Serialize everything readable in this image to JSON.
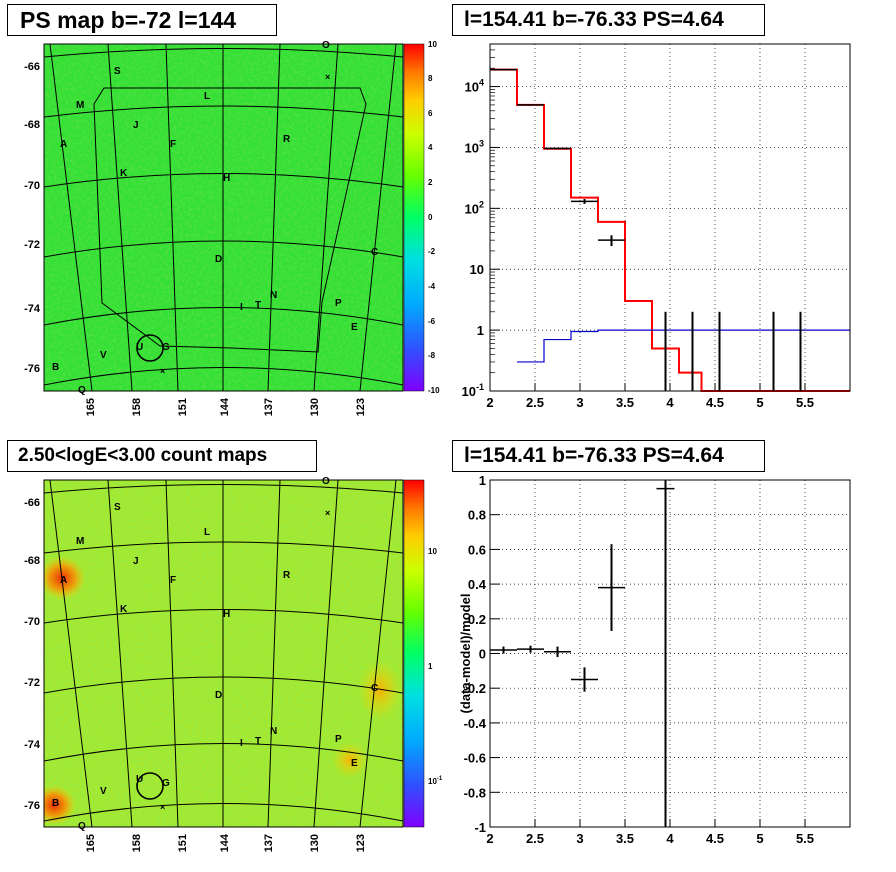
{
  "panels": {
    "ps_map_title": "PS map b=-72 l=144",
    "spectrum_title": "l=154.41 b=-76.33 PS=4.64",
    "count_map_title": "2.50<logE<3.00 count maps",
    "residual_title": "l=154.41 b=-76.33 PS=4.64"
  },
  "sky_maps": {
    "y_ticks": [
      "-66",
      "-68",
      "-70",
      "-72",
      "-74",
      "-76"
    ],
    "x_ticks": [
      "165",
      "158",
      "151",
      "144",
      "137",
      "130",
      "123"
    ],
    "source_labels": [
      "O",
      "S",
      "L",
      "M",
      "J",
      "A",
      "F",
      "R",
      "K",
      "H",
      "C",
      "D",
      "N",
      "I",
      "T",
      "P",
      "E",
      "U",
      "G",
      "V",
      "B",
      "Q"
    ],
    "ps_colorbar_ticks": [
      "10",
      "8",
      "6",
      "4",
      "2",
      "0",
      "-2",
      "-4",
      "-6",
      "-8",
      "-10"
    ],
    "count_colorbar_ticks": [
      "10",
      "1",
      "10^-1"
    ]
  },
  "chart_data": [
    {
      "type": "line",
      "title": "l=154.41 b=-76.33 PS=4.64",
      "xlabel": "",
      "ylabel": "",
      "xlim": [
        2,
        6
      ],
      "ylim": [
        0.1,
        50000
      ],
      "log_y": true,
      "grid": true,
      "x_ticks": [
        "2",
        "2.5",
        "3",
        "3.5",
        "4",
        "4.5",
        "5",
        "5.5"
      ],
      "y_ticks": [
        {
          "value": 10000,
          "base": "10",
          "exp": "4"
        },
        {
          "value": 1000,
          "base": "10",
          "exp": "3"
        },
        {
          "value": 100,
          "base": "10",
          "exp": "2"
        },
        {
          "value": 10,
          "base": "10",
          "exp": ""
        },
        {
          "value": 1,
          "base": "1",
          "exp": ""
        },
        {
          "value": 0.1,
          "base": "10",
          "exp": "-1"
        }
      ],
      "series": [
        {
          "kind": "step",
          "color": "#ff0000",
          "edges": [
            2,
            2.3,
            2.6,
            2.9,
            3.2,
            3.5,
            3.8,
            4.1,
            4.35,
            6
          ],
          "values": [
            19000,
            5000,
            950,
            150,
            60,
            3,
            0.5,
            0.2,
            0.1
          ]
        },
        {
          "kind": "step",
          "color": "#0000cc",
          "edges": [
            2.3,
            2.6,
            2.9,
            3.2,
            6
          ],
          "values": [
            0.3,
            0.7,
            0.95,
            1.0
          ]
        },
        {
          "kind": "points",
          "color": "#000000",
          "points": [
            {
              "x": 2.15,
              "y": 19000,
              "xerr": 0.15,
              "ylo": 18800,
              "yhi": 19200
            },
            {
              "x": 2.45,
              "y": 5000,
              "xerr": 0.15,
              "ylo": 4900,
              "yhi": 5100
            },
            {
              "x": 2.75,
              "y": 960,
              "xerr": 0.15,
              "ylo": 930,
              "yhi": 990
            },
            {
              "x": 3.05,
              "y": 130,
              "xerr": 0.15,
              "ylo": 118,
              "yhi": 142
            },
            {
              "x": 3.35,
              "y": 30,
              "xerr": 0.15,
              "ylo": 24,
              "yhi": 36
            },
            {
              "x": 3.95,
              "y": 1,
              "xerr": 0,
              "ylo": 0.1,
              "yhi": 2
            },
            {
              "x": 4.25,
              "y": 1,
              "xerr": 0,
              "ylo": 0.1,
              "yhi": 2
            },
            {
              "x": 4.55,
              "y": 1,
              "xerr": 0,
              "ylo": 0.1,
              "yhi": 2
            },
            {
              "x": 5.15,
              "y": 1,
              "xerr": 0,
              "ylo": 0.1,
              "yhi": 2
            },
            {
              "x": 5.45,
              "y": 1,
              "xerr": 0,
              "ylo": 0.1,
              "yhi": 2
            }
          ]
        }
      ]
    },
    {
      "type": "scatter",
      "title": "l=154.41 b=-76.33 PS=4.64",
      "xlabel": "",
      "ylabel": "(data-model)/model",
      "xlim": [
        2,
        6
      ],
      "ylim": [
        -1,
        1
      ],
      "grid": true,
      "x_ticks": [
        "2",
        "2.5",
        "3",
        "3.5",
        "4",
        "4.5",
        "5",
        "5.5"
      ],
      "y_ticks": [
        "1",
        "0.8",
        "0.6",
        "0.4",
        "0.2",
        "0",
        "-0.2",
        "-0.4",
        "-0.6",
        "-0.8",
        "-1"
      ],
      "points": [
        {
          "x": 2.15,
          "y": 0.02,
          "xerr": 0.15,
          "yerr": 0.02
        },
        {
          "x": 2.45,
          "y": 0.025,
          "xerr": 0.15,
          "yerr": 0.02
        },
        {
          "x": 2.75,
          "y": 0.01,
          "xerr": 0.15,
          "yerr": 0.03
        },
        {
          "x": 3.05,
          "y": -0.15,
          "xerr": 0.15,
          "yerr": 0.07
        },
        {
          "x": 3.35,
          "y": 0.38,
          "xerr": 0.15,
          "yerr": 0.25
        },
        {
          "x": 3.95,
          "y": 0.95,
          "xerr": 0.1,
          "ylo": -1,
          "yhi": 1
        }
      ]
    }
  ]
}
